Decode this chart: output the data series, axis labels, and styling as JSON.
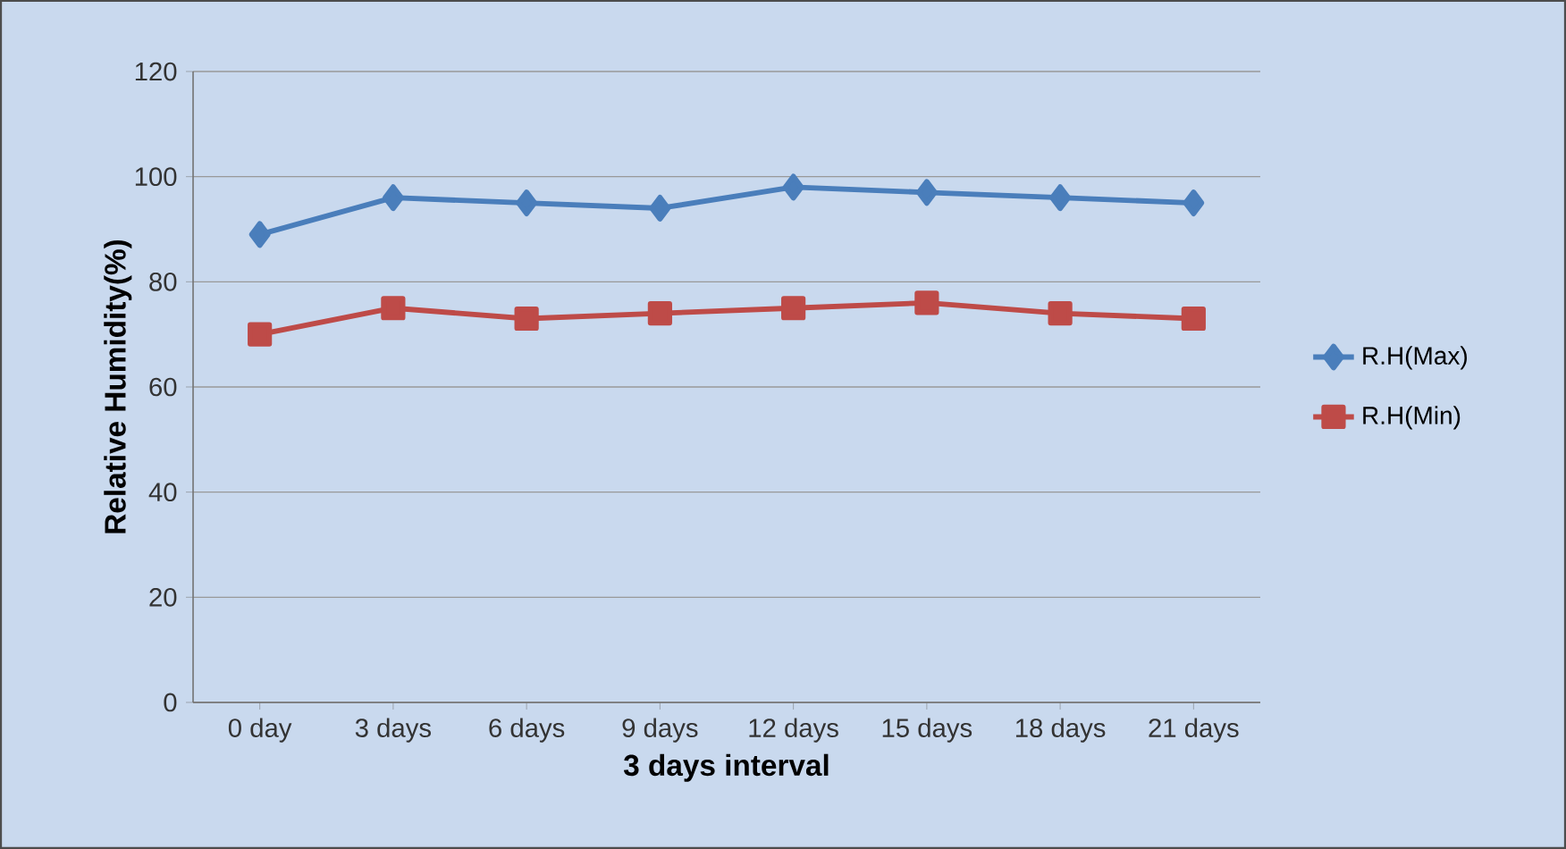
{
  "chart_data": {
    "type": "line",
    "xlabel": "3 days interval",
    "ylabel": "Relative Humidity(%)",
    "categories": [
      "0 day",
      "3 days",
      "6 days",
      "9 days",
      "12 days",
      "15 days",
      "18 days",
      "21 days"
    ],
    "series": [
      {
        "name": "R.H(Max)",
        "color": "#4a7ebb",
        "marker": "diamond",
        "values": [
          89,
          96,
          95,
          94,
          98,
          97,
          96,
          95
        ]
      },
      {
        "name": "R.H(Min)",
        "color": "#be4b48",
        "marker": "square",
        "values": [
          70,
          75,
          73,
          74,
          75,
          76,
          74,
          73
        ]
      }
    ],
    "ylim": [
      0,
      120
    ],
    "yticks": [
      0,
      20,
      40,
      60,
      80,
      100,
      120
    ],
    "grid": "y",
    "legend": "right",
    "line_style": "solid"
  }
}
